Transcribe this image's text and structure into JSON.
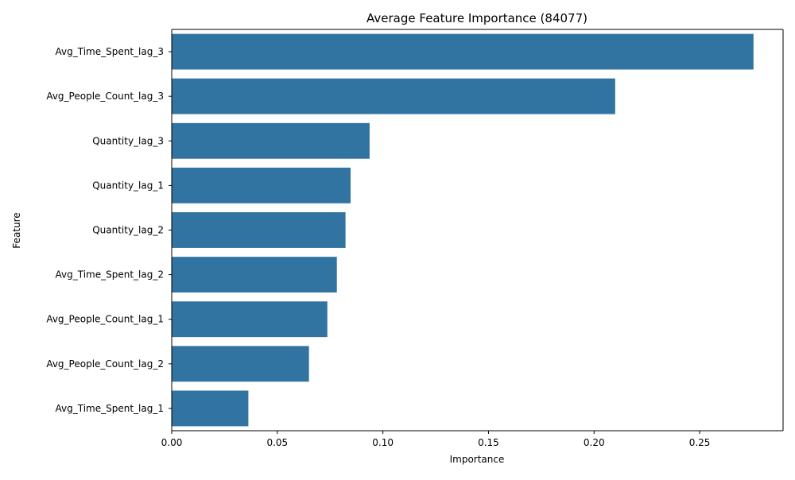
{
  "chart_data": {
    "type": "bar",
    "orientation": "horizontal",
    "title": "Average Feature Importance (84077)",
    "xlabel": "Importance",
    "ylabel": "Feature",
    "categories": [
      "Avg_Time_Spent_lag_3",
      "Avg_People_Count_lag_3",
      "Quantity_lag_3",
      "Quantity_lag_1",
      "Quantity_lag_2",
      "Avg_Time_Spent_lag_2",
      "Avg_People_Count_lag_1",
      "Avg_People_Count_lag_2",
      "Avg_Time_Spent_lag_1"
    ],
    "values": [
      0.2755,
      0.21,
      0.0937,
      0.0847,
      0.0823,
      0.0782,
      0.0737,
      0.065,
      0.0363
    ],
    "xlim": [
      0,
      0.2895
    ],
    "xticks": [
      0.0,
      0.05,
      0.1,
      0.15,
      0.2,
      0.25
    ],
    "xtick_labels": [
      "0.00",
      "0.05",
      "0.10",
      "0.15",
      "0.20",
      "0.25"
    ],
    "grid": false,
    "legend": "none",
    "bar_color": "#3274a1"
  }
}
